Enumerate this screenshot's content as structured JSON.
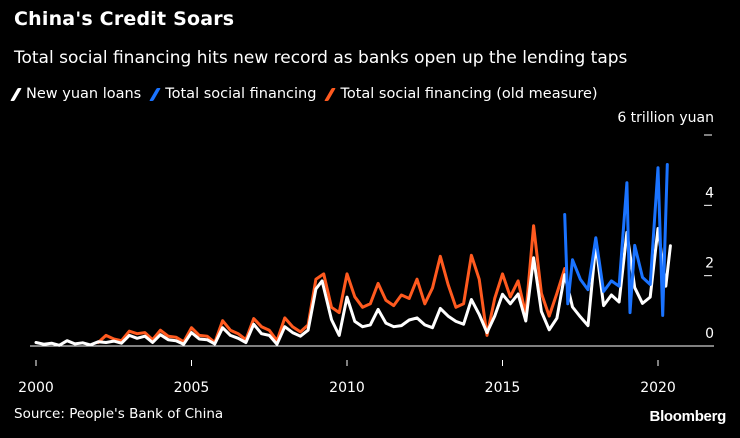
{
  "header": {
    "title": "China's Credit Soars",
    "subtitle": "Total social financing hits new record as banks open up the lending taps"
  },
  "footer": {
    "source": "Source: People's Bank of China",
    "brand": "Bloomberg"
  },
  "colors": {
    "background": "#000000",
    "loans": "#ffffff",
    "tsf": "#1a73ff",
    "tsf_old": "#ff5a1f",
    "axis": "#ffffff"
  },
  "chart_data": {
    "type": "line",
    "title": "China's Credit Soars",
    "subtitle": "Total social financing hits new record as banks open up the lending taps",
    "ylabel": "6 trillion yuan",
    "xlabel": "",
    "xlim": [
      2000,
      2020.9
    ],
    "ylim": [
      0,
      6
    ],
    "x_ticks": [
      {
        "value": 2000,
        "label": "2000"
      },
      {
        "value": 2005,
        "label": "2005"
      },
      {
        "value": 2010,
        "label": "2010"
      },
      {
        "value": 2015,
        "label": "2015"
      },
      {
        "value": 2020,
        "label": "2020"
      }
    ],
    "y_ticks": [
      {
        "value": 0,
        "label": "0"
      },
      {
        "value": 2,
        "label": "2"
      },
      {
        "value": 4,
        "label": "4"
      },
      {
        "value": 6,
        "label": "6 trillion yuan"
      }
    ],
    "legend": [
      "New yuan loans",
      "Total social financing",
      "Total social financing (old measure)"
    ],
    "series": [
      {
        "name": "New yuan loans",
        "color": "#ffffff",
        "points": [
          [
            2000.0,
            0.1
          ],
          [
            2000.25,
            0.05
          ],
          [
            2000.5,
            0.08
          ],
          [
            2000.75,
            0.02
          ],
          [
            2001.0,
            0.15
          ],
          [
            2001.25,
            0.06
          ],
          [
            2001.5,
            0.09
          ],
          [
            2001.75,
            0.03
          ],
          [
            2002.0,
            0.12
          ],
          [
            2002.25,
            0.1
          ],
          [
            2002.5,
            0.14
          ],
          [
            2002.75,
            0.08
          ],
          [
            2003.0,
            0.3
          ],
          [
            2003.25,
            0.22
          ],
          [
            2003.5,
            0.28
          ],
          [
            2003.75,
            0.1
          ],
          [
            2004.0,
            0.32
          ],
          [
            2004.25,
            0.18
          ],
          [
            2004.5,
            0.15
          ],
          [
            2004.75,
            0.05
          ],
          [
            2005.0,
            0.38
          ],
          [
            2005.25,
            0.2
          ],
          [
            2005.5,
            0.18
          ],
          [
            2005.75,
            0.06
          ],
          [
            2006.0,
            0.52
          ],
          [
            2006.25,
            0.3
          ],
          [
            2006.5,
            0.22
          ],
          [
            2006.75,
            0.1
          ],
          [
            2007.0,
            0.62
          ],
          [
            2007.25,
            0.35
          ],
          [
            2007.5,
            0.3
          ],
          [
            2007.75,
            0.05
          ],
          [
            2008.0,
            0.55
          ],
          [
            2008.25,
            0.38
          ],
          [
            2008.5,
            0.28
          ],
          [
            2008.75,
            0.45
          ],
          [
            2009.0,
            1.62
          ],
          [
            2009.2,
            1.85
          ],
          [
            2009.5,
            0.75
          ],
          [
            2009.75,
            0.3
          ],
          [
            2010.0,
            1.39
          ],
          [
            2010.25,
            0.7
          ],
          [
            2010.5,
            0.55
          ],
          [
            2010.75,
            0.6
          ],
          [
            2011.0,
            1.04
          ],
          [
            2011.25,
            0.65
          ],
          [
            2011.5,
            0.55
          ],
          [
            2011.75,
            0.58
          ],
          [
            2012.0,
            0.74
          ],
          [
            2012.25,
            0.8
          ],
          [
            2012.5,
            0.6
          ],
          [
            2012.75,
            0.52
          ],
          [
            2013.0,
            1.07
          ],
          [
            2013.25,
            0.85
          ],
          [
            2013.5,
            0.7
          ],
          [
            2013.75,
            0.62
          ],
          [
            2014.0,
            1.32
          ],
          [
            2014.25,
            0.9
          ],
          [
            2014.5,
            0.38
          ],
          [
            2014.75,
            0.85
          ],
          [
            2015.0,
            1.47
          ],
          [
            2015.25,
            1.2
          ],
          [
            2015.5,
            1.48
          ],
          [
            2015.75,
            0.71
          ],
          [
            2016.0,
            2.51
          ],
          [
            2016.25,
            0.98
          ],
          [
            2016.5,
            0.46
          ],
          [
            2016.75,
            0.79
          ],
          [
            2017.0,
            2.03
          ],
          [
            2017.25,
            1.11
          ],
          [
            2017.5,
            0.83
          ],
          [
            2017.75,
            0.58
          ],
          [
            2018.0,
            2.9
          ],
          [
            2018.25,
            1.15
          ],
          [
            2018.5,
            1.45
          ],
          [
            2018.75,
            1.25
          ],
          [
            2019.0,
            3.23
          ],
          [
            2019.25,
            1.66
          ],
          [
            2019.5,
            1.21
          ],
          [
            2019.75,
            1.39
          ],
          [
            2020.0,
            3.34
          ],
          [
            2020.25,
            1.7
          ],
          [
            2020.4,
            2.85
          ]
        ]
      },
      {
        "name": "Total social financing (old measure)",
        "color": "#ff5a1f",
        "points": [
          [
            2002.0,
            0.1
          ],
          [
            2002.25,
            0.3
          ],
          [
            2002.5,
            0.2
          ],
          [
            2002.75,
            0.15
          ],
          [
            2003.0,
            0.42
          ],
          [
            2003.25,
            0.35
          ],
          [
            2003.5,
            0.38
          ],
          [
            2003.75,
            0.18
          ],
          [
            2004.0,
            0.45
          ],
          [
            2004.25,
            0.28
          ],
          [
            2004.5,
            0.25
          ],
          [
            2004.75,
            0.12
          ],
          [
            2005.0,
            0.52
          ],
          [
            2005.25,
            0.3
          ],
          [
            2005.5,
            0.28
          ],
          [
            2005.75,
            0.1
          ],
          [
            2006.0,
            0.72
          ],
          [
            2006.25,
            0.45
          ],
          [
            2006.5,
            0.35
          ],
          [
            2006.75,
            0.18
          ],
          [
            2007.0,
            0.78
          ],
          [
            2007.25,
            0.55
          ],
          [
            2007.5,
            0.45
          ],
          [
            2007.75,
            0.15
          ],
          [
            2008.0,
            0.8
          ],
          [
            2008.25,
            0.55
          ],
          [
            2008.5,
            0.4
          ],
          [
            2008.75,
            0.6
          ],
          [
            2009.0,
            1.9
          ],
          [
            2009.25,
            2.05
          ],
          [
            2009.5,
            1.1
          ],
          [
            2009.75,
            0.95
          ],
          [
            2010.0,
            2.05
          ],
          [
            2010.25,
            1.4
          ],
          [
            2010.5,
            1.1
          ],
          [
            2010.75,
            1.2
          ],
          [
            2011.0,
            1.78
          ],
          [
            2011.25,
            1.3
          ],
          [
            2011.5,
            1.15
          ],
          [
            2011.75,
            1.45
          ],
          [
            2012.0,
            1.35
          ],
          [
            2012.25,
            1.9
          ],
          [
            2012.5,
            1.2
          ],
          [
            2012.75,
            1.65
          ],
          [
            2013.0,
            2.55
          ],
          [
            2013.25,
            1.75
          ],
          [
            2013.5,
            1.1
          ],
          [
            2013.75,
            1.2
          ],
          [
            2014.0,
            2.58
          ],
          [
            2014.25,
            1.9
          ],
          [
            2014.5,
            0.3
          ],
          [
            2014.75,
            1.35
          ],
          [
            2015.0,
            2.05
          ],
          [
            2015.25,
            1.4
          ],
          [
            2015.5,
            1.85
          ],
          [
            2015.75,
            0.9
          ],
          [
            2016.0,
            3.42
          ],
          [
            2016.25,
            1.5
          ],
          [
            2016.5,
            0.85
          ],
          [
            2016.75,
            1.5
          ],
          [
            2017.0,
            2.2
          ]
        ]
      },
      {
        "name": "Total social financing",
        "color": "#1a73ff",
        "points": [
          [
            2017.0,
            3.74
          ],
          [
            2017.1,
            1.2
          ],
          [
            2017.25,
            2.45
          ],
          [
            2017.5,
            1.9
          ],
          [
            2017.75,
            1.6
          ],
          [
            2018.0,
            3.08
          ],
          [
            2018.25,
            1.55
          ],
          [
            2018.5,
            1.85
          ],
          [
            2018.75,
            1.7
          ],
          [
            2019.0,
            4.64
          ],
          [
            2019.1,
            0.95
          ],
          [
            2019.25,
            2.86
          ],
          [
            2019.5,
            1.95
          ],
          [
            2019.75,
            1.75
          ],
          [
            2020.0,
            5.07
          ],
          [
            2020.15,
            0.87
          ],
          [
            2020.3,
            5.16
          ]
        ]
      }
    ]
  }
}
